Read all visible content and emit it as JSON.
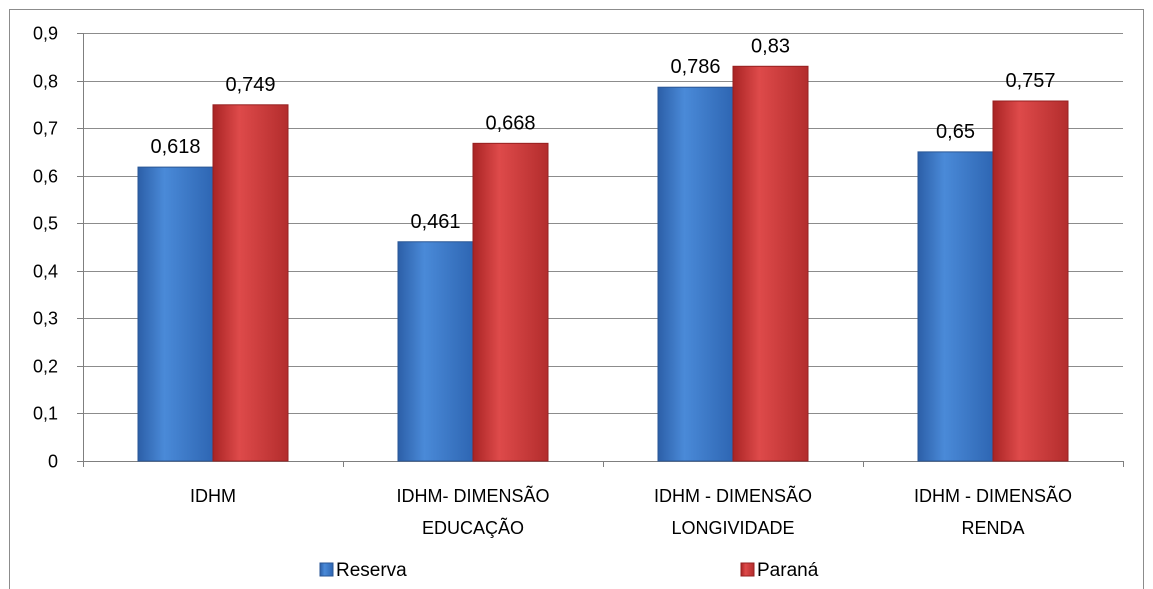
{
  "chart_data": {
    "type": "bar",
    "categories": [
      [
        "IDHM"
      ],
      [
        "IDHM- DIMENSÃO",
        "EDUCAÇÃO"
      ],
      [
        "IDHM - DIMENSÃO",
        "LONGIVIDADE"
      ],
      [
        "IDHM - DIMENSÃO",
        "RENDA"
      ]
    ],
    "series": [
      {
        "name": "Reserva",
        "values": [
          0.618,
          0.461,
          0.786,
          0.65
        ],
        "labels": [
          "0,618",
          "0,461",
          "0,786",
          "0,65"
        ],
        "color": "#3b78c9"
      },
      {
        "name": "Paraná",
        "values": [
          0.749,
          0.668,
          0.83,
          0.757
        ],
        "labels": [
          "0,749",
          "0,668",
          "0,83",
          "0,757"
        ],
        "color": "#cc3a3a"
      }
    ],
    "ylim": [
      0,
      0.9
    ],
    "yticks": [
      0,
      0.1,
      0.2,
      0.3,
      0.4,
      0.5,
      0.6,
      0.7,
      0.8,
      0.9
    ],
    "ytick_labels": [
      "0",
      "0,1",
      "0,2",
      "0,3",
      "0,4",
      "0,5",
      "0,6",
      "0,7",
      "0,8",
      "0,9"
    ],
    "grid": true,
    "legend": "bottom"
  }
}
